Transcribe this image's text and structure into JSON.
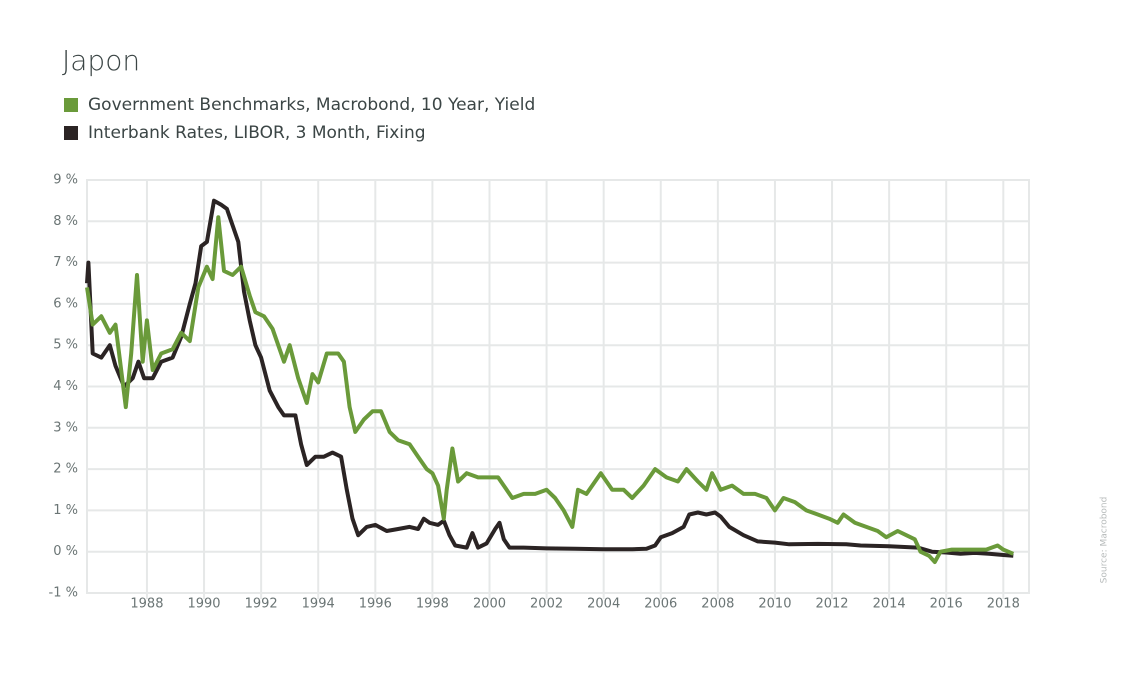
{
  "chart_data": {
    "type": "line",
    "title": "Japon",
    "source": "Source: Macrobond",
    "xlim": [
      1985.9,
      2018.9
    ],
    "xticks": [
      1988,
      1990,
      1992,
      1994,
      1996,
      1998,
      2000,
      2002,
      2004,
      2006,
      2008,
      2010,
      2012,
      2014,
      2016,
      2018
    ],
    "ylim": [
      -1,
      9
    ],
    "yticks": [
      {
        "value": -1,
        "label": "-1 %"
      },
      {
        "value": 0,
        "label": "0 %"
      },
      {
        "value": 1,
        "label": "1 %"
      },
      {
        "value": 2,
        "label": "2 %"
      },
      {
        "value": 3,
        "label": "3 %"
      },
      {
        "value": 4,
        "label": "4 %"
      },
      {
        "value": 5,
        "label": "5 %"
      },
      {
        "value": 6,
        "label": "6 %"
      },
      {
        "value": 7,
        "label": "7 %"
      },
      {
        "value": 8,
        "label": "8 %"
      },
      {
        "value": 9,
        "label": "9 %"
      }
    ],
    "grid": true,
    "series": [
      {
        "name": "Government Benchmarks, Macrobond, 10 Year, Yield",
        "color": "#6a9a3a",
        "x": [
          1985.9,
          1986.1,
          1986.4,
          1986.7,
          1986.9,
          1987.26,
          1987.45,
          1987.65,
          1987.85,
          1988.0,
          1988.2,
          1988.5,
          1988.9,
          1989.2,
          1989.5,
          1989.8,
          1990.1,
          1990.3,
          1990.5,
          1990.7,
          1991.0,
          1991.3,
          1991.6,
          1991.8,
          1992.1,
          1992.4,
          1992.8,
          1993.0,
          1993.3,
          1993.6,
          1993.8,
          1994.0,
          1994.3,
          1994.7,
          1994.9,
          1995.1,
          1995.3,
          1995.6,
          1995.9,
          1996.2,
          1996.5,
          1996.8,
          1997.2,
          1997.5,
          1997.8,
          1998.0,
          1998.2,
          1998.4,
          1998.5,
          1998.7,
          1998.9,
          1999.2,
          1999.6,
          2000.0,
          2000.3,
          2000.5,
          2000.8,
          2001.2,
          2001.6,
          2002.0,
          2002.3,
          2002.6,
          2002.9,
          2003.1,
          2003.4,
          2003.9,
          2004.3,
          2004.7,
          2005.0,
          2005.4,
          2005.8,
          2006.2,
          2006.6,
          2006.9,
          2007.3,
          2007.6,
          2007.8,
          2008.1,
          2008.5,
          2008.9,
          2009.3,
          2009.7,
          2010.0,
          2010.3,
          2010.7,
          2011.1,
          2011.5,
          2011.9,
          2012.2,
          2012.4,
          2012.8,
          2013.2,
          2013.6,
          2013.9,
          2014.3,
          2014.6,
          2014.9,
          2015.1,
          2015.4,
          2015.6,
          2015.8,
          2016.2,
          2016.6,
          2017.0,
          2017.4,
          2017.8,
          2018.0,
          2018.35
        ],
        "values": [
          6.4,
          5.5,
          5.7,
          5.3,
          5.5,
          3.5,
          4.8,
          6.7,
          4.6,
          5.6,
          4.4,
          4.8,
          4.9,
          5.3,
          5.1,
          6.4,
          6.9,
          6.6,
          8.1,
          6.8,
          6.7,
          6.9,
          6.2,
          5.8,
          5.7,
          5.4,
          4.6,
          5.0,
          4.2,
          3.6,
          4.3,
          4.1,
          4.8,
          4.8,
          4.6,
          3.5,
          2.9,
          3.2,
          3.4,
          3.4,
          2.9,
          2.7,
          2.6,
          2.3,
          2.0,
          1.9,
          1.6,
          0.8,
          1.5,
          2.5,
          1.7,
          1.9,
          1.8,
          1.8,
          1.8,
          1.6,
          1.3,
          1.4,
          1.4,
          1.5,
          1.3,
          1.0,
          0.6,
          1.5,
          1.4,
          1.9,
          1.5,
          1.5,
          1.3,
          1.6,
          2.0,
          1.8,
          1.7,
          2.0,
          1.7,
          1.5,
          1.9,
          1.5,
          1.6,
          1.4,
          1.4,
          1.3,
          1.0,
          1.3,
          1.2,
          1.0,
          0.9,
          0.8,
          0.7,
          0.9,
          0.7,
          0.6,
          0.5,
          0.35,
          0.5,
          0.4,
          0.3,
          0.0,
          -0.1,
          -0.25,
          0.0,
          0.05,
          0.05,
          0.05,
          0.05,
          0.15,
          0.05,
          -0.05
        ]
      },
      {
        "name": "Interbank Rates, LIBOR, 3 Month, Fixing",
        "color": "#2b2424",
        "x": [
          1985.9,
          1985.95,
          1986.1,
          1986.4,
          1986.7,
          1986.9,
          1987.2,
          1987.5,
          1987.7,
          1987.9,
          1988.2,
          1988.5,
          1988.9,
          1989.2,
          1989.5,
          1989.7,
          1989.9,
          1990.1,
          1990.35,
          1990.6,
          1990.8,
          1991.0,
          1991.2,
          1991.4,
          1991.6,
          1991.8,
          1992.0,
          1992.3,
          1992.6,
          1992.8,
          1993.2,
          1993.4,
          1993.6,
          1993.9,
          1994.2,
          1994.5,
          1994.8,
          1995.0,
          1995.2,
          1995.4,
          1995.7,
          1996.0,
          1996.4,
          1996.8,
          1997.2,
          1997.5,
          1997.7,
          1997.9,
          1998.2,
          1998.4,
          1998.6,
          1998.8,
          1999.2,
          1999.4,
          1999.6,
          1999.9,
          2000.2,
          2000.35,
          2000.5,
          2000.7,
          2001.2,
          2002.0,
          2003.0,
          2004.0,
          2005.0,
          2005.5,
          2005.8,
          2006.0,
          2006.4,
          2006.8,
          2007.0,
          2007.3,
          2007.6,
          2007.9,
          2008.1,
          2008.4,
          2008.9,
          2009.4,
          2010.0,
          2010.5,
          2011.5,
          2012.5,
          2013.0,
          2014.0,
          2015.0,
          2015.5,
          2016.0,
          2016.5,
          2017.0,
          2017.5,
          2018.0,
          2018.35
        ],
        "values": [
          6.5,
          7.0,
          4.8,
          4.7,
          5.0,
          4.5,
          4.0,
          4.2,
          4.6,
          4.2,
          4.2,
          4.6,
          4.7,
          5.2,
          6.0,
          6.5,
          7.4,
          7.5,
          8.5,
          8.4,
          8.3,
          7.9,
          7.5,
          6.3,
          5.6,
          5.0,
          4.7,
          3.9,
          3.5,
          3.3,
          3.3,
          2.6,
          2.1,
          2.3,
          2.3,
          2.4,
          2.3,
          1.5,
          0.8,
          0.4,
          0.6,
          0.65,
          0.5,
          0.55,
          0.6,
          0.55,
          0.8,
          0.7,
          0.65,
          0.75,
          0.4,
          0.15,
          0.1,
          0.45,
          0.1,
          0.2,
          0.55,
          0.7,
          0.3,
          0.1,
          0.1,
          0.08,
          0.07,
          0.06,
          0.06,
          0.07,
          0.15,
          0.35,
          0.45,
          0.6,
          0.9,
          0.95,
          0.9,
          0.95,
          0.85,
          0.6,
          0.4,
          0.25,
          0.22,
          0.18,
          0.19,
          0.18,
          0.15,
          0.13,
          0.1,
          0.0,
          -0.02,
          -0.05,
          -0.03,
          -0.05,
          -0.08,
          -0.1
        ]
      }
    ]
  }
}
